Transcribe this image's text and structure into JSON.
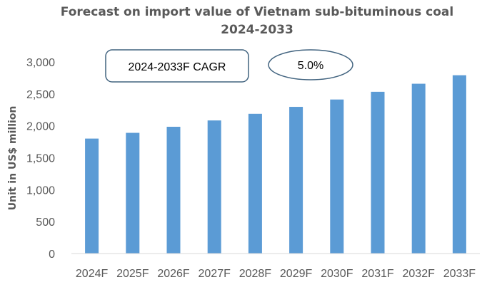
{
  "chart_data": {
    "type": "bar",
    "title_line1": "Forecast on  import value of Vietnam sub-bituminous coal",
    "title_line2": "2024-2033",
    "xlabel": "",
    "ylabel": "Unit in US$ million",
    "categories": [
      "2024F",
      "2025F",
      "2026F",
      "2027F",
      "2028F",
      "2029F",
      "2030F",
      "2031F",
      "2032F",
      "2033F"
    ],
    "values": [
      1800,
      1890,
      1985,
      2084,
      2188,
      2297,
      2412,
      2533,
      2659,
      2792
    ],
    "ylim": [
      0,
      3000
    ],
    "yticks": [
      0,
      500,
      1000,
      1500,
      2000,
      2500,
      3000
    ],
    "ytick_labels": [
      "0",
      "500",
      "1,000",
      "1,500",
      "2,000",
      "2,500",
      "3,000"
    ],
    "grid": false,
    "bar_color": "#5B9BD5",
    "annotations": {
      "cagr_label": "2024-2033F CAGR",
      "cagr_value": "5.0%"
    }
  }
}
